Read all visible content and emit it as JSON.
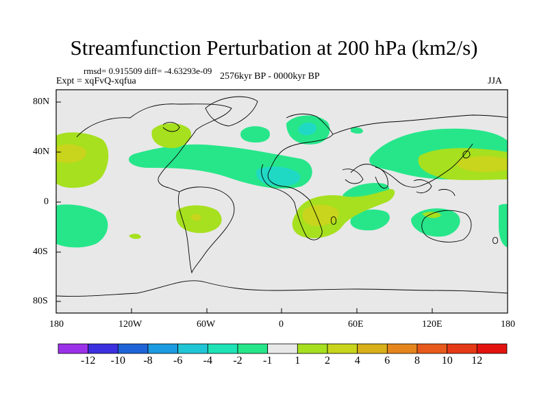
{
  "title": "Streamfunction Perturbation at 200 hPa (km2/s)",
  "stats": "rmsd= 0.915509 diff= -4.63293e-09",
  "experiment": "Expt = xqFvQ-xqfua",
  "period": "2576kyr BP - 0000kyr BP",
  "season": "JJA",
  "axes": {
    "x_ticks": [
      "180",
      "120W",
      "60W",
      "0",
      "60E",
      "120E",
      "180"
    ],
    "y_ticks": [
      "80N",
      "40N",
      "0",
      "40S",
      "80S"
    ]
  },
  "colorbar": {
    "labels": [
      "-12",
      "-10",
      "-8",
      "-6",
      "-4",
      "-2",
      "-1",
      "1",
      "2",
      "4",
      "6",
      "8",
      "10",
      "12"
    ],
    "colors": [
      "#9b31e8",
      "#3b2fe0",
      "#1e63d8",
      "#1a9be2",
      "#20c6d6",
      "#1fe3b7",
      "#27e68a",
      "#e8e8e8",
      "#a6e01f",
      "#c8d51c",
      "#d8b01a",
      "#e5861c",
      "#e85a1b",
      "#e53a16",
      "#e2130f"
    ]
  },
  "colors": {
    "land_background": "#e8e8e8",
    "neg_light": "#27e68a",
    "neg_mid": "#20d9c4",
    "pos_light": "#a6e01f",
    "pos_mid": "#c8d51c"
  }
}
